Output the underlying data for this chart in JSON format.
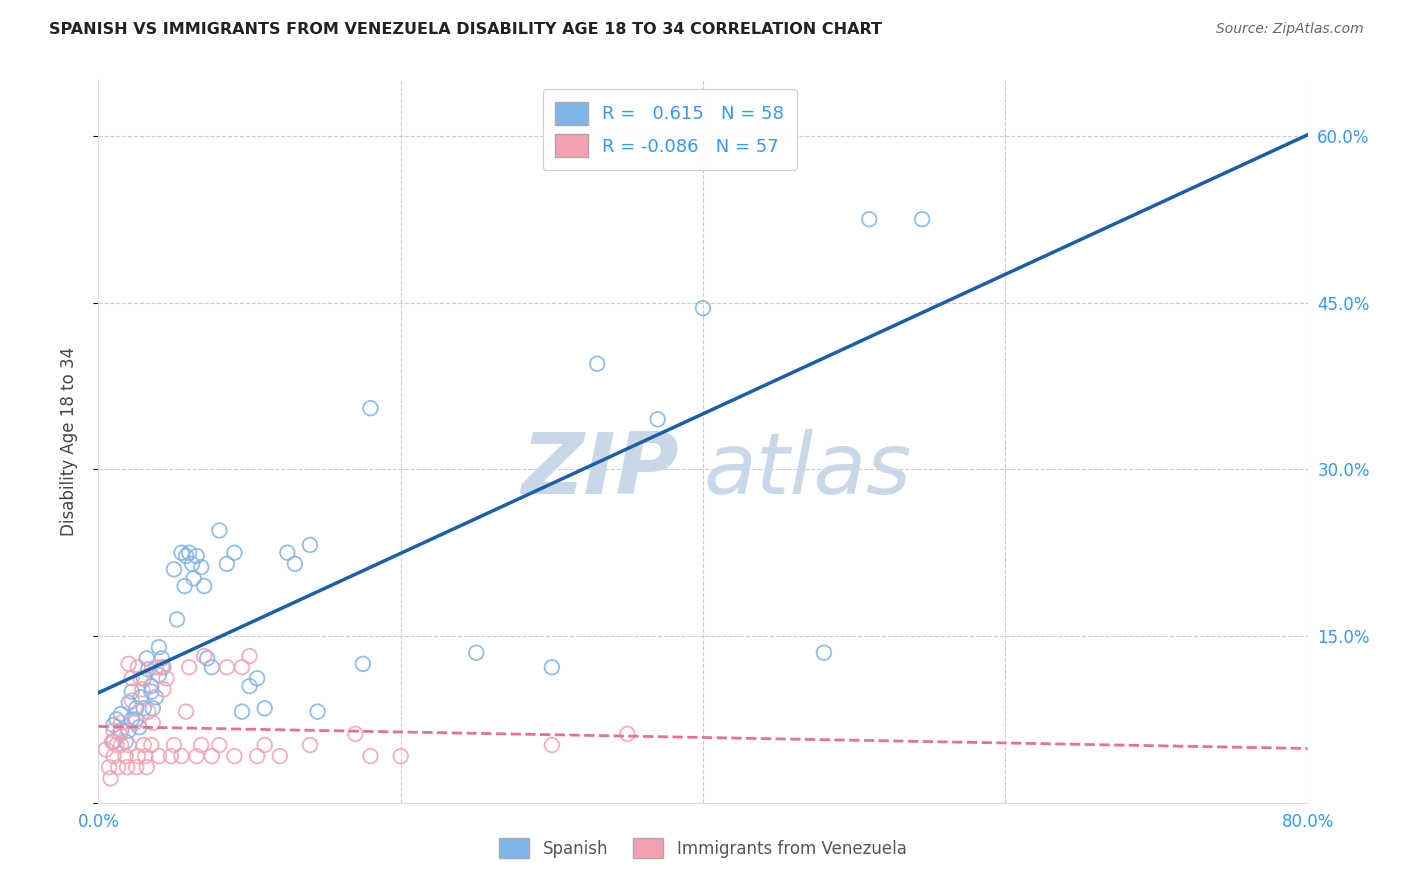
{
  "title": "SPANISH VS IMMIGRANTS FROM VENEZUELA DISABILITY AGE 18 TO 34 CORRELATION CHART",
  "source": "Source: ZipAtlas.com",
  "ylabel": "Disability Age 18 to 34",
  "xlim": [
    0.0,
    0.8
  ],
  "ylim": [
    0.0,
    0.65
  ],
  "xticks": [
    0.0,
    0.2,
    0.4,
    0.6,
    0.8
  ],
  "yticks": [
    0.0,
    0.15,
    0.3,
    0.45,
    0.6
  ],
  "right_yticklabels": [
    "",
    "15.0%",
    "30.0%",
    "45.0%",
    "60.0%"
  ],
  "bottom_xticklabels": [
    "0.0%",
    "",
    "",
    "",
    "80.0%"
  ],
  "spanish_R": 0.615,
  "spanish_N": 58,
  "venezuela_R": -0.086,
  "venezuela_N": 57,
  "spanish_color": "#7eb3e8",
  "venezuela_color": "#f4a0b0",
  "trendline_spanish_color": "#1a5fa8",
  "trendline_venezuela_color": "#e87090",
  "watermark_zip": "ZIP",
  "watermark_atlas": "atlas",
  "watermark_color": "#c8d8e8",
  "background_color": "#ffffff",
  "grid_color": "#cccccc",
  "legend_label_spanish": "Spanish",
  "legend_label_venezuela": "Immigrants from Venezuela",
  "spanish_points": [
    [
      0.01,
      0.07
    ],
    [
      0.01,
      0.055
    ],
    [
      0.012,
      0.075
    ],
    [
      0.015,
      0.065
    ],
    [
      0.015,
      0.08
    ],
    [
      0.018,
      0.055
    ],
    [
      0.02,
      0.09
    ],
    [
      0.02,
      0.065
    ],
    [
      0.022,
      0.075
    ],
    [
      0.022,
      0.1
    ],
    [
      0.025,
      0.085
    ],
    [
      0.025,
      0.075
    ],
    [
      0.027,
      0.068
    ],
    [
      0.028,
      0.095
    ],
    [
      0.03,
      0.112
    ],
    [
      0.03,
      0.085
    ],
    [
      0.032,
      0.13
    ],
    [
      0.033,
      0.12
    ],
    [
      0.035,
      0.105
    ],
    [
      0.035,
      0.1
    ],
    [
      0.036,
      0.085
    ],
    [
      0.038,
      0.095
    ],
    [
      0.04,
      0.14
    ],
    [
      0.04,
      0.115
    ],
    [
      0.042,
      0.13
    ],
    [
      0.043,
      0.122
    ],
    [
      0.05,
      0.21
    ],
    [
      0.052,
      0.165
    ],
    [
      0.055,
      0.225
    ],
    [
      0.057,
      0.195
    ],
    [
      0.058,
      0.222
    ],
    [
      0.06,
      0.225
    ],
    [
      0.062,
      0.215
    ],
    [
      0.063,
      0.202
    ],
    [
      0.065,
      0.222
    ],
    [
      0.068,
      0.212
    ],
    [
      0.07,
      0.195
    ],
    [
      0.072,
      0.13
    ],
    [
      0.075,
      0.122
    ],
    [
      0.08,
      0.245
    ],
    [
      0.085,
      0.215
    ],
    [
      0.09,
      0.225
    ],
    [
      0.095,
      0.082
    ],
    [
      0.1,
      0.105
    ],
    [
      0.105,
      0.112
    ],
    [
      0.11,
      0.085
    ],
    [
      0.125,
      0.225
    ],
    [
      0.13,
      0.215
    ],
    [
      0.14,
      0.232
    ],
    [
      0.145,
      0.082
    ],
    [
      0.175,
      0.125
    ],
    [
      0.18,
      0.355
    ],
    [
      0.25,
      0.135
    ],
    [
      0.3,
      0.122
    ],
    [
      0.33,
      0.395
    ],
    [
      0.37,
      0.345
    ],
    [
      0.4,
      0.445
    ],
    [
      0.48,
      0.135
    ],
    [
      0.51,
      0.525
    ],
    [
      0.545,
      0.525
    ]
  ],
  "venezuela_points": [
    [
      0.005,
      0.048
    ],
    [
      0.007,
      0.032
    ],
    [
      0.008,
      0.022
    ],
    [
      0.009,
      0.055
    ],
    [
      0.01,
      0.065
    ],
    [
      0.01,
      0.042
    ],
    [
      0.012,
      0.052
    ],
    [
      0.013,
      0.032
    ],
    [
      0.014,
      0.062
    ],
    [
      0.015,
      0.072
    ],
    [
      0.015,
      0.052
    ],
    [
      0.018,
      0.042
    ],
    [
      0.019,
      0.032
    ],
    [
      0.02,
      0.052
    ],
    [
      0.02,
      0.125
    ],
    [
      0.022,
      0.112
    ],
    [
      0.022,
      0.092
    ],
    [
      0.024,
      0.072
    ],
    [
      0.025,
      0.032
    ],
    [
      0.026,
      0.042
    ],
    [
      0.026,
      0.122
    ],
    [
      0.028,
      0.112
    ],
    [
      0.029,
      0.102
    ],
    [
      0.03,
      0.052
    ],
    [
      0.031,
      0.042
    ],
    [
      0.032,
      0.032
    ],
    [
      0.033,
      0.082
    ],
    [
      0.035,
      0.052
    ],
    [
      0.036,
      0.072
    ],
    [
      0.038,
      0.122
    ],
    [
      0.04,
      0.042
    ],
    [
      0.042,
      0.122
    ],
    [
      0.043,
      0.102
    ],
    [
      0.045,
      0.112
    ],
    [
      0.048,
      0.042
    ],
    [
      0.05,
      0.052
    ],
    [
      0.055,
      0.042
    ],
    [
      0.058,
      0.082
    ],
    [
      0.06,
      0.122
    ],
    [
      0.065,
      0.042
    ],
    [
      0.068,
      0.052
    ],
    [
      0.07,
      0.132
    ],
    [
      0.075,
      0.042
    ],
    [
      0.08,
      0.052
    ],
    [
      0.085,
      0.122
    ],
    [
      0.09,
      0.042
    ],
    [
      0.095,
      0.122
    ],
    [
      0.1,
      0.132
    ],
    [
      0.105,
      0.042
    ],
    [
      0.11,
      0.052
    ],
    [
      0.12,
      0.042
    ],
    [
      0.14,
      0.052
    ],
    [
      0.17,
      0.062
    ],
    [
      0.18,
      0.042
    ],
    [
      0.2,
      0.042
    ],
    [
      0.3,
      0.052
    ],
    [
      0.35,
      0.062
    ]
  ]
}
